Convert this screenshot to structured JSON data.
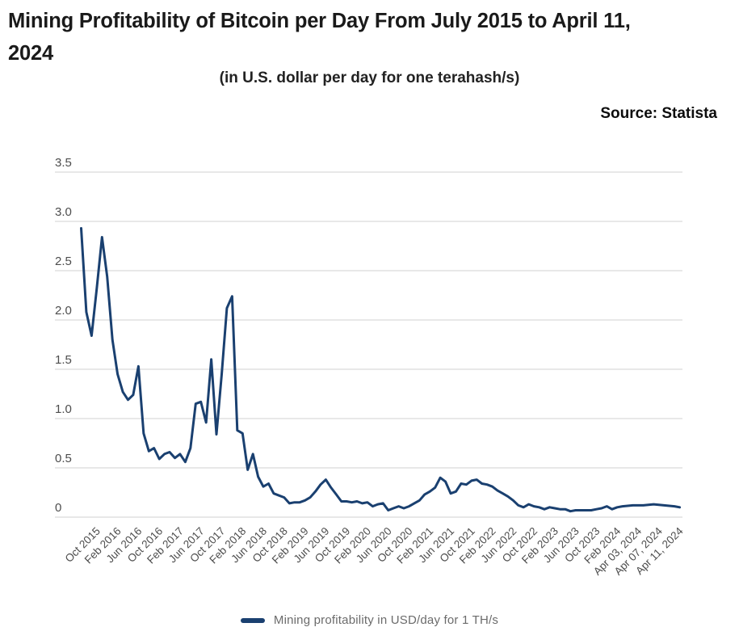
{
  "title": "Mining Profitability of Bitcoin per Day From July 2015 to April 11,\n2024",
  "subtitle": "(in U.S. dollar per day for one terahash/s)",
  "source": "Source: Statista",
  "legend": {
    "label": "Mining profitability in USD/day for 1 TH/s",
    "swatch_color": "#1A4070"
  },
  "colors": {
    "line": "#1A4070",
    "grid": "#d9d9d9",
    "axis_text": "#4d4d4d",
    "title_text": "#1a1a1a",
    "legend_text": "#6b6b6b"
  },
  "chart_data": {
    "type": "line",
    "title": "Mining Profitability of Bitcoin per Day From July 2015 to April 11, 2024",
    "subtitle": "(in U.S. dollar per day for one terahash/s)",
    "xlabel": "",
    "ylabel": "",
    "ylim": [
      0,
      3.5
    ],
    "grid": "horizontal",
    "legend_position": "bottom",
    "y_ticks": [
      "3.5",
      "3.0",
      "2.5",
      "2.0",
      "1.5",
      "1.0",
      "0.5",
      "0"
    ],
    "series_name": "Mining profitability in USD/day for 1 TH/s",
    "x_start": "Jul 2015",
    "x_end": "Apr 11, 2024",
    "x_tick_labels": [
      {
        "i": 3,
        "label": "Oct 2015"
      },
      {
        "i": 7,
        "label": "Feb 2016"
      },
      {
        "i": 11,
        "label": "Jun 2016"
      },
      {
        "i": 15,
        "label": "Oct 2016"
      },
      {
        "i": 19,
        "label": "Feb 2017"
      },
      {
        "i": 23,
        "label": "Jun 2017"
      },
      {
        "i": 27,
        "label": "Oct 2017"
      },
      {
        "i": 31,
        "label": "Feb 2018"
      },
      {
        "i": 35,
        "label": "Jun 2018"
      },
      {
        "i": 39,
        "label": "Oct 2018"
      },
      {
        "i": 43,
        "label": "Feb 2019"
      },
      {
        "i": 47,
        "label": "Jun 2019"
      },
      {
        "i": 51,
        "label": "Oct 2019"
      },
      {
        "i": 55,
        "label": "Feb 2020"
      },
      {
        "i": 59,
        "label": "Jun 2020"
      },
      {
        "i": 63,
        "label": "Oct 2020"
      },
      {
        "i": 67,
        "label": "Feb 2021"
      },
      {
        "i": 71,
        "label": "Jun 2021"
      },
      {
        "i": 75,
        "label": "Oct 2021"
      },
      {
        "i": 79,
        "label": "Feb 2022"
      },
      {
        "i": 83,
        "label": "Jun 2022"
      },
      {
        "i": 87,
        "label": "Oct 2022"
      },
      {
        "i": 91,
        "label": "Feb 2023"
      },
      {
        "i": 95,
        "label": "Jun 2023"
      },
      {
        "i": 99,
        "label": "Oct 2023"
      },
      {
        "i": 103,
        "label": "Feb 2024"
      },
      {
        "i": 107,
        "label": "Apr 03, 2024"
      },
      {
        "i": 111,
        "label": "Apr 07, 2024"
      },
      {
        "i": 115,
        "label": "Apr 11, 2024"
      }
    ],
    "values": [
      2.93,
      2.08,
      1.84,
      2.32,
      2.84,
      2.44,
      1.8,
      1.45,
      1.27,
      1.19,
      1.24,
      1.53,
      0.85,
      0.67,
      0.7,
      0.59,
      0.64,
      0.66,
      0.6,
      0.64,
      0.56,
      0.7,
      1.15,
      1.17,
      0.96,
      1.6,
      0.84,
      1.45,
      2.12,
      2.24,
      0.88,
      0.85,
      0.48,
      0.64,
      0.41,
      0.31,
      0.34,
      0.24,
      0.22,
      0.2,
      0.14,
      0.15,
      0.15,
      0.17,
      0.2,
      0.26,
      0.33,
      0.38,
      0.3,
      0.23,
      0.16,
      0.16,
      0.15,
      0.16,
      0.14,
      0.15,
      0.11,
      0.13,
      0.14,
      0.07,
      0.09,
      0.11,
      0.09,
      0.11,
      0.14,
      0.17,
      0.23,
      0.26,
      0.3,
      0.4,
      0.36,
      0.24,
      0.26,
      0.34,
      0.33,
      0.37,
      0.38,
      0.34,
      0.33,
      0.31,
      0.27,
      0.24,
      0.21,
      0.17,
      0.12,
      0.1,
      0.13,
      0.11,
      0.1,
      0.08,
      0.1,
      0.09,
      0.08,
      0.08,
      0.06,
      0.07,
      0.07,
      0.07,
      0.07,
      0.08,
      0.09,
      0.11,
      0.08,
      0.1,
      0.11,
      0.115,
      0.12,
      0.12,
      0.12,
      0.125,
      0.13,
      0.125,
      0.12,
      0.115,
      0.11,
      0.1
    ]
  }
}
